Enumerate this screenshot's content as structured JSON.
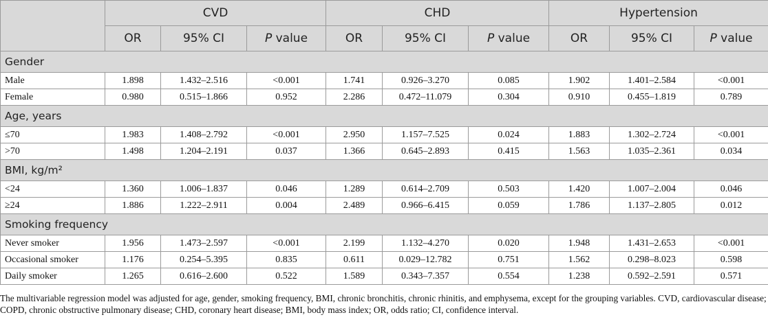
{
  "table": {
    "corner": "",
    "groups": [
      {
        "name": "CVD",
        "columns": [
          "OR",
          "95% CI",
          "P value"
        ]
      },
      {
        "name": "CHD",
        "columns": [
          "OR",
          "95% CI",
          "P value"
        ]
      },
      {
        "name": "Hypertension",
        "columns": [
          "OR",
          "95% CI",
          "P value"
        ]
      }
    ],
    "sections": [
      {
        "label": "Gender",
        "rows": [
          [
            "Male",
            "1.898",
            "1.432–2.516",
            "<0.001",
            "1.741",
            "0.926–3.270",
            "0.085",
            "1.902",
            "1.401–2.584",
            "<0.001"
          ],
          [
            "Female",
            "0.980",
            "0.515–1.866",
            "0.952",
            "2.286",
            "0.472–11.079",
            "0.304",
            "0.910",
            "0.455–1.819",
            "0.789"
          ]
        ]
      },
      {
        "label": "Age, years",
        "rows": [
          [
            "≤70",
            "1.983",
            "1.408–2.792",
            "<0.001",
            "2.950",
            "1.157–7.525",
            "0.024",
            "1.883",
            "1.302–2.724",
            "<0.001"
          ],
          [
            ">70",
            "1.498",
            "1.204–2.191",
            "0.037",
            "1.366",
            "0.645–2.893",
            "0.415",
            "1.563",
            "1.035–2.361",
            "0.034"
          ]
        ]
      },
      {
        "label": "BMI, kg/m²",
        "rows": [
          [
            "<24",
            "1.360",
            "1.006–1.837",
            "0.046",
            "1.289",
            "0.614–2.709",
            "0.503",
            "1.420",
            "1.007–2.004",
            "0.046"
          ],
          [
            "≥24",
            "1.886",
            "1.222–2.911",
            "0.004",
            "2.489",
            "0.966–6.415",
            "0.059",
            "1.786",
            "1.137–2.805",
            "0.012"
          ]
        ]
      },
      {
        "label": "Smoking frequency",
        "rows": [
          [
            "Never smoker",
            "1.956",
            "1.473–2.597",
            "<0.001",
            "2.199",
            "1.132–4.270",
            "0.020",
            "1.948",
            "1.431–2.653",
            "<0.001"
          ],
          [
            "Occasional smoker",
            "1.176",
            "0.254–5.395",
            "0.835",
            "0.611",
            "0.029–12.782",
            "0.751",
            "1.562",
            "0.298–8.023",
            "0.598"
          ],
          [
            "Daily smoker",
            "1.265",
            "0.616–2.600",
            "0.522",
            "1.589",
            "0.343–7.357",
            "0.554",
            "1.238",
            "0.592–2.591",
            "0.571"
          ]
        ]
      }
    ],
    "footnote": "The multivariable regression model was adjusted for age, gender, smoking frequency, BMI, chronic bronchitis, chronic rhinitis, and emphysema, except for the grouping variables. CVD, cardiovascular disease; COPD, chronic obstructive pulmonary disease; CHD, coronary heart disease; BMI, body mass index; OR, odds ratio; CI, confidence interval."
  }
}
